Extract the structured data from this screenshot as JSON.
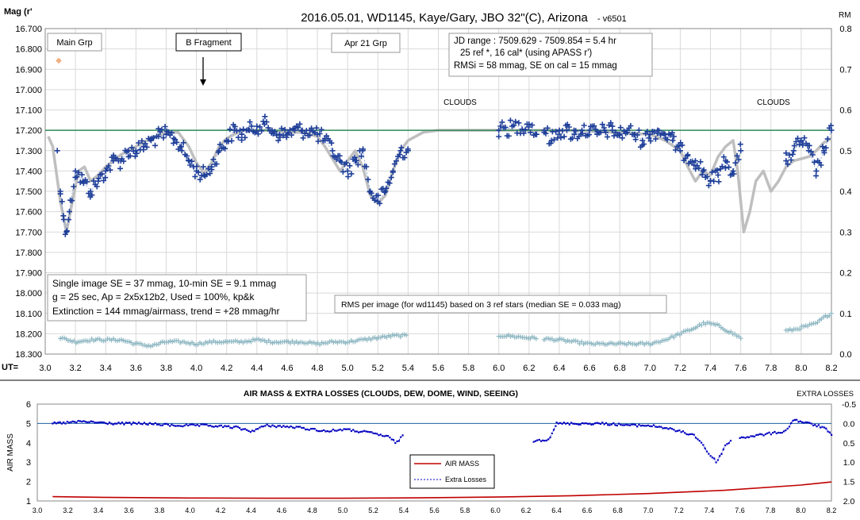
{
  "top_chart": {
    "title": "2016.05.01,  WD1145, Kaye/Gary, JBO 32\"(C), Arizona",
    "version": "- v6501",
    "ylabel_left": "Mag (r'",
    "ylabel_right": "RM",
    "xlabel": "UT=",
    "x_ticks": [
      "3.0",
      "3.2",
      "3.4",
      "3.6",
      "3.8",
      "4.0",
      "4.2",
      "4.4",
      "4.6",
      "4.8",
      "5.0",
      "5.2",
      "5.4",
      "5.6",
      "5.8",
      "6.0",
      "6.2",
      "6.4",
      "6.6",
      "6.8",
      "7.0",
      "7.2",
      "7.4",
      "7.6",
      "7.8",
      "8.0",
      "8.2"
    ],
    "y_ticks_left": [
      "16.700",
      "16.800",
      "16.900",
      "17.000",
      "17.100",
      "17.200",
      "17.300",
      "17.400",
      "17.500",
      "17.600",
      "17.700",
      "17.800",
      "17.900",
      "18.000",
      "18.100",
      "18.200",
      "18.300"
    ],
    "y_ticks_right": [
      "0.8",
      "0.7",
      "0.6",
      "0.5",
      "0.4",
      "0.3",
      "0.2",
      "0.1",
      "0.0"
    ],
    "labels": {
      "main_grp": "Main Grp",
      "b_fragment": "B Fragment",
      "apr21_grp": "Apr 21 Grp",
      "clouds_1": "CLOUDS",
      "clouds_2": "CLOUDS"
    },
    "info_box": {
      "line1": "JD range  : 7509.629 - 7509.854  = 5.4 hr",
      "line2": "25 ref *, 16 cal* (using APASS r')",
      "line3": "RMSi = 58 mmag, SE on cal = 15 mmag"
    },
    "stats_box": {
      "line1": "Single image SE = 37 mmag, 10-min SE = 9.1 mmag",
      "line2": "g = 25 sec, Ap = 2x5x12b2, Used = 100%, kp&k",
      "line3": "Extinction = 144 mmag/airmass, trend = +28 mmag/hr"
    },
    "rms_note": "RMS per image (for wd1145) based on 3 ref stars (median SE = 0.033 mag)"
  },
  "bottom_chart": {
    "title": "AIR MASS & EXTRA LOSSES (CLOUDS, DEW, DOME, WIND, SEEING)",
    "ylabel_left": "AIR MASS",
    "ylabel_right": "EXTRA LOSSES",
    "x_ticks": [
      "3.0",
      "3.2",
      "3.4",
      "3.6",
      "3.8",
      "4.0",
      "4.2",
      "4.4",
      "4.6",
      "4.8",
      "5.0",
      "5.2",
      "5.4",
      "5.6",
      "5.8",
      "6.0",
      "6.2",
      "6.4",
      "6.6",
      "6.8",
      "7.0",
      "7.2",
      "7.4",
      "7.6",
      "7.8",
      "8.0",
      "8.2"
    ],
    "y_ticks_left": [
      "6",
      "5",
      "4",
      "3",
      "2",
      "1"
    ],
    "y_ticks_right": [
      "-0.5",
      "0.0",
      "0.5",
      "1.0",
      "1.5",
      "2.0"
    ],
    "legend": {
      "air_mass": "AIR MASS",
      "extra_losses": "Extra Losses"
    }
  },
  "colors": {
    "data_points": "#1f3f99",
    "model": "#bfbfbf",
    "reference_line": "#2e8b57",
    "rms": "#8fb8c3",
    "air_mass": "#c00000",
    "extra_losses": "#0000c0",
    "zero_line": "#1f5fa0"
  },
  "chart_data": [
    {
      "type": "scatter",
      "title": "2016.05.01,  WD1145, Kaye/Gary, JBO 32\"(C), Arizona",
      "xlabel": "UT=",
      "ylabel": "Mag (r'",
      "xlim": [
        3.0,
        8.2
      ],
      "ylim": [
        18.3,
        16.7
      ],
      "y2lim": [
        0.0,
        0.8
      ],
      "grid": true,
      "reference_mag": 17.2,
      "series": [
        {
          "kind": "photometry",
          "segments": [
            {
              "x0": 3.1,
              "x1": 5.4
            },
            {
              "x0": 6.0,
              "x1": 6.25
            },
            {
              "x0": 6.3,
              "x1": 7.6
            },
            {
              "x0": 7.9,
              "x1": 8.2
            }
          ],
          "x": [
            3.08,
            3.1,
            3.12,
            3.14,
            3.16,
            3.2,
            3.25,
            3.3,
            3.35,
            3.4,
            3.45,
            3.5,
            3.55,
            3.6,
            3.65,
            3.7,
            3.75,
            3.8,
            3.85,
            3.9,
            3.95,
            4.0,
            4.05,
            4.1,
            4.15,
            4.2,
            4.25,
            4.3,
            4.35,
            4.4,
            4.45,
            4.5,
            4.55,
            4.6,
            4.65,
            4.7,
            4.75,
            4.8,
            4.85,
            4.9,
            4.95,
            5.0,
            5.05,
            5.1,
            5.15,
            5.2,
            5.25,
            5.3,
            5.35,
            5.4,
            6.0,
            6.2,
            6.25,
            6.3,
            6.35,
            6.4,
            6.45,
            6.5,
            6.55,
            6.6,
            6.65,
            6.7,
            6.75,
            6.8,
            6.85,
            6.9,
            6.95,
            7.0,
            7.05,
            7.1,
            7.15,
            7.2,
            7.25,
            7.3,
            7.35,
            7.4,
            7.45,
            7.5,
            7.55,
            7.6,
            7.9,
            7.95,
            8.0,
            8.05,
            8.1,
            8.15,
            8.2
          ],
          "y": [
            17.3,
            17.5,
            17.62,
            17.7,
            17.6,
            17.4,
            17.45,
            17.5,
            17.45,
            17.4,
            17.35,
            17.35,
            17.3,
            17.3,
            17.28,
            17.25,
            17.23,
            17.22,
            17.24,
            17.28,
            17.35,
            17.4,
            17.42,
            17.38,
            17.3,
            17.25,
            17.2,
            17.22,
            17.2,
            17.18,
            17.17,
            17.2,
            17.22,
            17.22,
            17.2,
            17.2,
            17.2,
            17.22,
            17.25,
            17.3,
            17.35,
            17.4,
            17.35,
            17.3,
            17.5,
            17.55,
            17.5,
            17.4,
            17.3,
            17.3,
            17.2,
            17.17,
            17.22,
            17.2,
            17.25,
            17.2,
            17.2,
            17.22,
            17.2,
            17.2,
            17.22,
            17.2,
            17.2,
            17.22,
            17.2,
            17.22,
            17.25,
            17.22,
            17.2,
            17.22,
            17.25,
            17.3,
            17.32,
            17.35,
            17.4,
            17.45,
            17.42,
            17.35,
            17.4,
            17.3,
            17.35,
            17.3,
            17.25,
            17.3,
            17.4,
            17.3,
            17.2
          ]
        },
        {
          "kind": "model",
          "x": [
            3.02,
            3.05,
            3.1,
            3.14,
            3.18,
            3.22,
            3.26,
            3.3,
            3.35,
            3.4,
            3.45,
            3.5,
            3.6,
            3.7,
            3.8,
            3.88,
            3.95,
            4.0,
            4.05,
            4.1,
            4.15,
            4.2,
            4.3,
            4.4,
            4.5,
            4.6,
            4.7,
            4.8,
            4.85,
            4.9,
            4.95,
            5.0,
            5.05,
            5.1,
            5.15,
            5.2,
            5.25,
            5.3,
            5.35,
            5.4,
            5.5,
            5.6,
            6.0,
            6.5,
            7.0,
            7.1,
            7.2,
            7.25,
            7.3,
            7.35,
            7.4,
            7.45,
            7.5,
            7.55,
            7.58,
            7.62,
            7.66,
            7.7,
            7.75,
            7.8,
            7.85,
            7.9,
            7.95,
            8.0,
            8.05,
            8.1,
            8.15,
            8.2
          ],
          "y": [
            17.23,
            17.28,
            17.55,
            17.7,
            17.55,
            17.4,
            17.38,
            17.45,
            17.42,
            17.38,
            17.35,
            17.32,
            17.28,
            17.24,
            17.21,
            17.21,
            17.28,
            17.36,
            17.41,
            17.36,
            17.28,
            17.24,
            17.2,
            17.2,
            17.2,
            17.21,
            17.21,
            17.23,
            17.28,
            17.34,
            17.4,
            17.35,
            17.3,
            17.38,
            17.52,
            17.56,
            17.52,
            17.4,
            17.3,
            17.25,
            17.21,
            17.2,
            17.2,
            17.2,
            17.22,
            17.25,
            17.3,
            17.38,
            17.45,
            17.4,
            17.42,
            17.33,
            17.28,
            17.25,
            17.4,
            17.7,
            17.6,
            17.45,
            17.4,
            17.5,
            17.45,
            17.38,
            17.35,
            17.34,
            17.33,
            17.3,
            17.26,
            17.24
          ]
        },
        {
          "kind": "rms_per_image",
          "axis": "right",
          "segments": [
            {
              "x0": 3.1,
              "x1": 5.4
            },
            {
              "x0": 6.0,
              "x1": 6.25
            },
            {
              "x0": 6.3,
              "x1": 7.6
            },
            {
              "x0": 7.9,
              "x1": 8.2
            }
          ],
          "x": [
            3.1,
            3.2,
            3.3,
            3.4,
            3.5,
            3.6,
            3.7,
            3.8,
            3.9,
            4.0,
            4.1,
            4.2,
            4.3,
            4.4,
            4.5,
            4.6,
            4.7,
            4.8,
            4.9,
            5.0,
            5.1,
            5.2,
            5.3,
            5.4,
            6.05,
            6.2,
            6.4,
            6.5,
            6.6,
            6.7,
            6.8,
            6.9,
            7.0,
            7.1,
            7.2,
            7.3,
            7.35,
            7.4,
            7.45,
            7.5,
            7.55,
            7.6,
            7.95,
            8.0,
            8.05,
            8.1,
            8.15,
            8.2
          ],
          "y": [
            0.04,
            0.03,
            0.035,
            0.035,
            0.035,
            0.025,
            0.02,
            0.03,
            0.03,
            0.025,
            0.03,
            0.03,
            0.03,
            0.035,
            0.03,
            0.03,
            0.03,
            0.025,
            0.03,
            0.03,
            0.035,
            0.04,
            0.045,
            0.045,
            0.045,
            0.04,
            0.035,
            0.03,
            0.025,
            0.025,
            0.025,
            0.025,
            0.025,
            0.035,
            0.05,
            0.065,
            0.075,
            0.075,
            0.07,
            0.06,
            0.05,
            0.04,
            0.06,
            0.065,
            0.07,
            0.075,
            0.09,
            0.1
          ]
        }
      ]
    },
    {
      "type": "line",
      "title": "AIR MASS & EXTRA LOSSES (CLOUDS, DEW, DOME, WIND, SEEING)",
      "ylabel": "AIR MASS",
      "y2label": "EXTRA LOSSES",
      "xlim": [
        3.0,
        8.2
      ],
      "ylim": [
        1,
        6
      ],
      "y2lim": [
        -0.5,
        2.0
      ],
      "legend": "center-left",
      "series": [
        {
          "name": "AIR MASS",
          "axis": "left",
          "x": [
            3.1,
            3.5,
            4.0,
            4.5,
            5.0,
            5.5,
            6.0,
            6.5,
            7.0,
            7.5,
            8.0,
            8.2
          ],
          "y": [
            1.22,
            1.18,
            1.15,
            1.14,
            1.14,
            1.16,
            1.2,
            1.27,
            1.38,
            1.55,
            1.82,
            1.98
          ]
        },
        {
          "name": "Extra Losses",
          "axis": "right",
          "segments": [
            {
              "x0": 3.1,
              "x1": 5.4
            },
            {
              "x0": 6.25,
              "x1": 6.4
            },
            {
              "x0": 6.4,
              "x1": 7.55
            },
            {
              "x0": 7.6,
              "x1": 8.2
            }
          ],
          "x": [
            3.1,
            3.3,
            3.5,
            3.7,
            3.9,
            4.1,
            4.3,
            4.4,
            4.5,
            4.7,
            4.9,
            5.0,
            5.1,
            5.2,
            5.3,
            5.35,
            5.4,
            6.25,
            6.35,
            6.4,
            6.5,
            6.7,
            6.9,
            7.0,
            7.1,
            7.2,
            7.3,
            7.35,
            7.4,
            7.45,
            7.5,
            7.55,
            7.9,
            7.95,
            8.05,
            8.15,
            8.2
          ],
          "y": [
            0.0,
            -0.05,
            0.0,
            0.0,
            0.05,
            0.05,
            0.1,
            0.2,
            0.05,
            0.1,
            0.2,
            0.15,
            0.2,
            0.25,
            0.35,
            0.5,
            0.3,
            0.45,
            0.4,
            0.0,
            0.0,
            0.0,
            0.05,
            0.05,
            0.1,
            0.2,
            0.3,
            0.5,
            0.8,
            1.0,
            0.6,
            0.4,
            0.2,
            -0.1,
            0.0,
            0.1,
            0.3
          ]
        }
      ]
    }
  ]
}
